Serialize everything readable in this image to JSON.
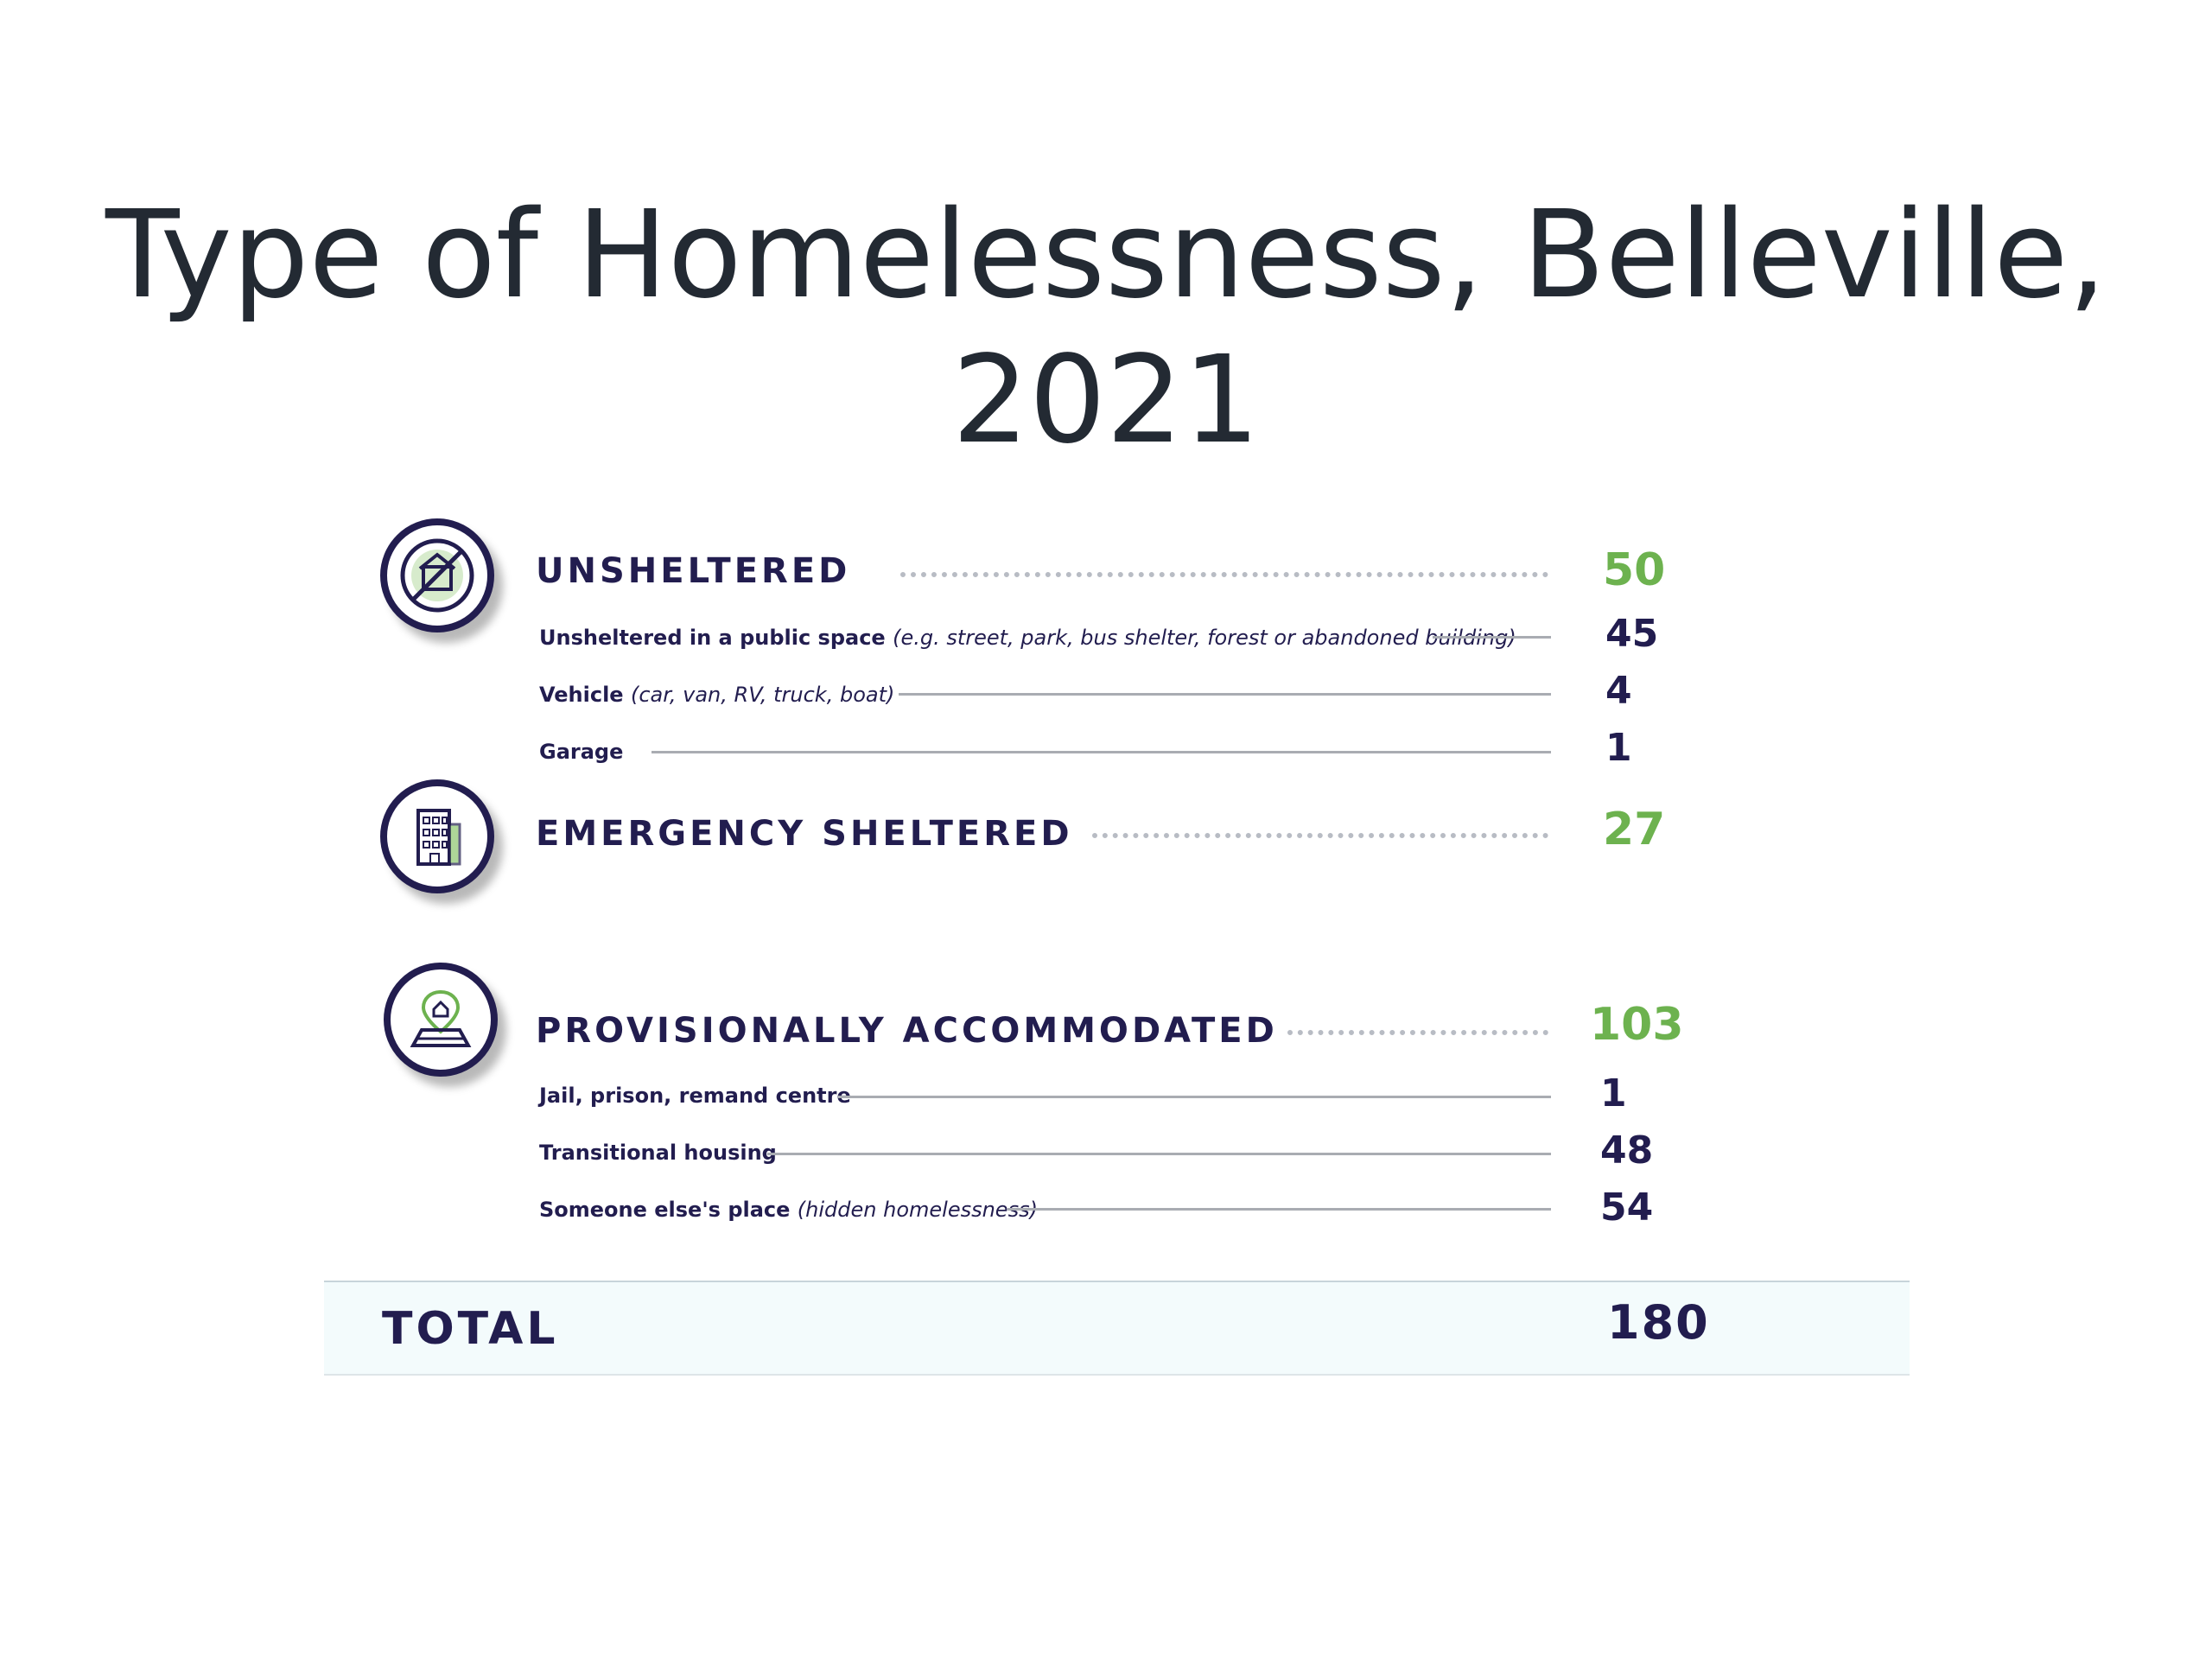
{
  "title": {
    "line1": "Type of Homelessness, Belleville,",
    "line2": "2021"
  },
  "categories": [
    {
      "label": "UNSHELTERED",
      "value": "50",
      "icon": "no-tent-icon",
      "items": [
        {
          "label": "Unsheltered in a public space",
          "note": "(e.g. street, park, bus shelter, forest or abandoned building)",
          "value": "45"
        },
        {
          "label": "Vehicle",
          "note": "(car, van, RV, truck, boat)",
          "value": "4"
        },
        {
          "label": "Garage",
          "note": "",
          "value": "1"
        }
      ]
    },
    {
      "label": "EMERGENCY SHELTERED",
      "value": "27",
      "icon": "building-icon",
      "items": []
    },
    {
      "label": "PROVISIONALLY ACCOMMODATED",
      "value": "103",
      "icon": "home-location-pin-icon",
      "items": [
        {
          "label": "Jail, prison, remand centre",
          "note": "",
          "value": "1"
        },
        {
          "label": "Transitional housing",
          "note": "",
          "value": "48"
        },
        {
          "label": "Someone else's place",
          "note": "(hidden homelessness)",
          "value": "54"
        }
      ]
    }
  ],
  "total": {
    "label": "TOTAL",
    "value": "180"
  },
  "colors": {
    "navy": "#221d4f",
    "green": "#6db24f",
    "title": "#232a33",
    "band": "#f3fbfc"
  }
}
